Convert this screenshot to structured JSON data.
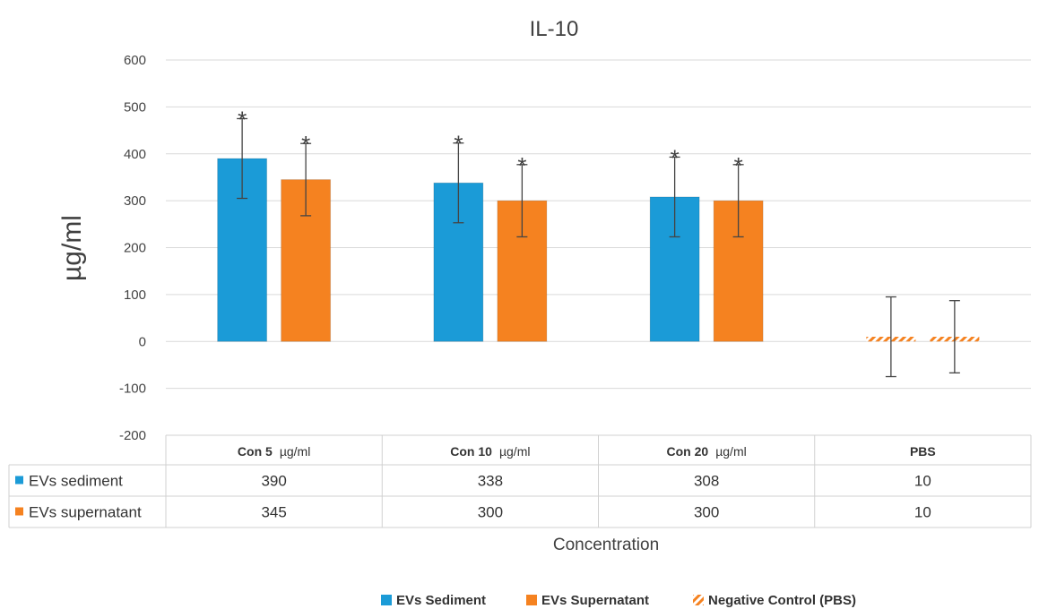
{
  "chart_data": {
    "type": "bar",
    "title": "IL-10",
    "xlabel": "Concentration",
    "ylabel": "µg/ml",
    "ylim": [
      -200,
      600
    ],
    "yticks": [
      -200,
      -100,
      0,
      100,
      200,
      300,
      400,
      500,
      600
    ],
    "grid": true,
    "categories": [
      {
        "main": "Con 5",
        "unit": "µg/ml"
      },
      {
        "main": "Con 10",
        "unit": "µg/ml"
      },
      {
        "main": "Con 20",
        "unit": "µg/ml"
      },
      {
        "main": "PBS",
        "unit": ""
      }
    ],
    "series": [
      {
        "name": "EVs sediment",
        "color": "#1b9bd7",
        "values": [
          390,
          338,
          308,
          10
        ],
        "error": [
          85,
          85,
          85,
          85
        ],
        "significance": [
          "*",
          "*",
          "*",
          ""
        ]
      },
      {
        "name": "EVs supernatant",
        "color": "#f58220",
        "values": [
          345,
          300,
          300,
          10
        ],
        "error": [
          77,
          77,
          77,
          77
        ],
        "significance": [
          "*",
          "*",
          "*",
          ""
        ]
      }
    ],
    "legend": {
      "position": "bottom",
      "entries": [
        {
          "label": "EVs Sediment",
          "color": "#1b9bd7",
          "style": "solid"
        },
        {
          "label": "EVs Supernatant",
          "color": "#f58220",
          "style": "solid"
        },
        {
          "label": "Negative Control (PBS)",
          "color": "#f58220",
          "style": "hatch"
        }
      ]
    },
    "negative_control_category": 3
  }
}
